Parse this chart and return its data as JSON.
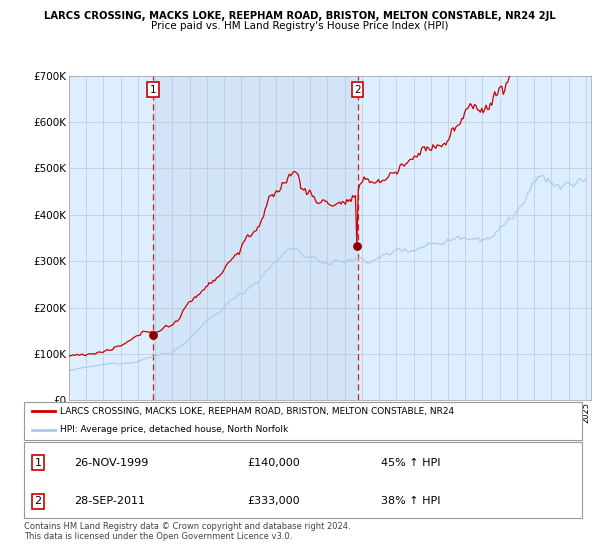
{
  "title_line1": "LARCS CROSSING, MACKS LOKE, REEPHAM ROAD, BRISTON, MELTON CONSTABLE, NR24 2JL",
  "title_line2": "Price paid vs. HM Land Registry's House Price Index (HPI)",
  "legend_line1": "LARCS CROSSING, MACKS LOKE, REEPHAM ROAD, BRISTON, MELTON CONSTABLE, NR24",
  "legend_line2": "HPI: Average price, detached house, North Norfolk",
  "purchase1_date": "26-NOV-1999",
  "purchase1_price": 140000,
  "purchase1_pct": "45% ↑ HPI",
  "purchase2_date": "28-SEP-2011",
  "purchase2_price": 333000,
  "purchase2_pct": "38% ↑ HPI",
  "footer": "Contains HM Land Registry data © Crown copyright and database right 2024.\nThis data is licensed under the Open Government Licence v3.0.",
  "ylim": [
    0,
    700000
  ],
  "yticks": [
    0,
    100000,
    200000,
    300000,
    400000,
    500000,
    600000,
    700000
  ],
  "ytick_labels": [
    "£0",
    "£100K",
    "£200K",
    "£300K",
    "£400K",
    "£500K",
    "£600K",
    "£700K"
  ],
  "hpi_color": "#aaccee",
  "property_color": "#cc0000",
  "dot_color": "#880000",
  "chart_bg": "#ddeeff",
  "purchase1_year": 1999.9,
  "purchase2_year": 2011.75,
  "grid_color": "#bbbbcc",
  "xmin": 1995,
  "xmax": 2025.3
}
